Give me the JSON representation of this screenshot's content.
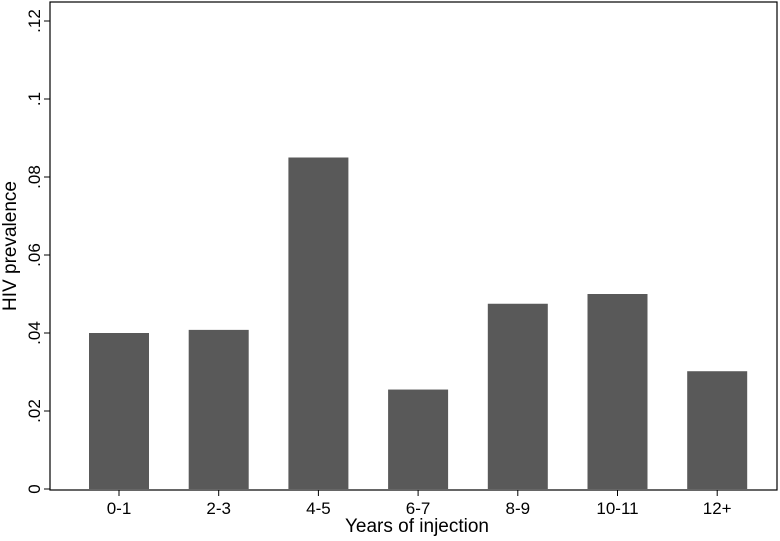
{
  "chart_data": {
    "type": "bar",
    "categories": [
      "0-1",
      "2-3",
      "4-5",
      "6-7",
      "8-9",
      "10-11",
      "12+"
    ],
    "values": [
      0.04,
      0.0408,
      0.085,
      0.0255,
      0.0475,
      0.05,
      0.0302
    ],
    "xlabel": "Years of injection",
    "ylabel": "HIV prevalence",
    "ylim": [
      0,
      0.12
    ],
    "yticks": [
      0,
      0.02,
      0.04,
      0.06,
      0.08,
      0.1,
      0.12
    ],
    "ytick_labels": [
      "0",
      ".02",
      ".04",
      ".06",
      ".08",
      ".1",
      ".12"
    ],
    "grid": false,
    "bar_color": "#595959"
  }
}
